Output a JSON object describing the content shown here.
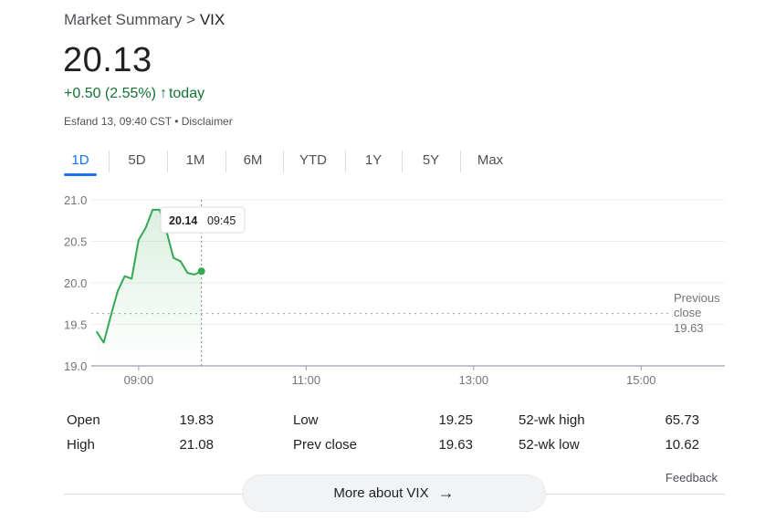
{
  "breadcrumb": {
    "parent": "Market Summary",
    "separator": ">",
    "current": "VIX"
  },
  "quote": {
    "price": "20.13",
    "change": "+0.50 (2.55%)",
    "change_arrow": "↑",
    "change_period": "today",
    "meta": "Esfand 13, 09:40 CST • Disclaimer",
    "positive_color": "#137333"
  },
  "tabs": [
    {
      "label": "1D",
      "active": true
    },
    {
      "label": "5D"
    },
    {
      "label": "1M"
    },
    {
      "label": "6M"
    },
    {
      "label": "YTD"
    },
    {
      "label": "1Y"
    },
    {
      "label": "5Y"
    },
    {
      "label": "Max"
    }
  ],
  "chart_data": {
    "type": "line",
    "x_unit": "time of day",
    "y_ticks": [
      "21.0",
      "20.5",
      "20.0",
      "19.5",
      "19.0"
    ],
    "x_ticks": [
      "09:00",
      "11:00",
      "13:00",
      "15:00"
    ],
    "ylim": [
      19.0,
      21.0
    ],
    "xlim": [
      "08:30",
      "16:00"
    ],
    "series": [
      {
        "color": "#34a853",
        "points": [
          {
            "x": "08:30",
            "y": 19.41
          },
          {
            "x": "08:35",
            "y": 19.28
          },
          {
            "x": "08:40",
            "y": 19.6
          },
          {
            "x": "08:45",
            "y": 19.9
          },
          {
            "x": "08:50",
            "y": 20.08
          },
          {
            "x": "08:55",
            "y": 20.05
          },
          {
            "x": "09:00",
            "y": 20.52
          },
          {
            "x": "09:05",
            "y": 20.66
          },
          {
            "x": "09:10",
            "y": 20.88
          },
          {
            "x": "09:15",
            "y": 20.88
          },
          {
            "x": "09:20",
            "y": 20.62
          },
          {
            "x": "09:25",
            "y": 20.3
          },
          {
            "x": "09:30",
            "y": 20.26
          },
          {
            "x": "09:35",
            "y": 20.12
          },
          {
            "x": "09:40",
            "y": 20.1
          },
          {
            "x": "09:45",
            "y": 20.14
          }
        ]
      }
    ],
    "previous_close": {
      "label_line1": "Previous",
      "label_line2": "close",
      "value": "19.63",
      "y": 19.63
    },
    "tooltip": {
      "value": "20.14",
      "time": "09:45",
      "x": "09:45",
      "y": 20.14
    },
    "grid": true
  },
  "stats": {
    "col1": [
      {
        "label": "Open",
        "value": "19.83"
      },
      {
        "label": "High",
        "value": "21.08"
      }
    ],
    "col2": [
      {
        "label": "Low",
        "value": "19.25"
      },
      {
        "label": "Prev close",
        "value": "19.63"
      }
    ],
    "col3": [
      {
        "label": "52-wk high",
        "value": "65.73"
      },
      {
        "label": "52-wk low",
        "value": "10.62"
      }
    ]
  },
  "feedback": "Feedback",
  "more_button": {
    "label": "More about VIX",
    "icon": "arrow-right-icon"
  },
  "colors": {
    "accent": "#1a73e8",
    "line": "#34a853"
  }
}
